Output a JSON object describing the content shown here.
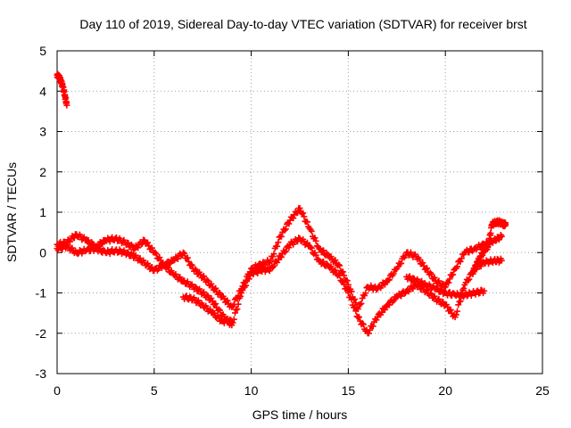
{
  "chart_data": {
    "type": "scatter",
    "title": "Day 110 of 2019, Sidereal Day-to-day VTEC variation (SDTVAR) for receiver brst",
    "xlabel": "GPS time / hours",
    "ylabel": "SDTVAR / TECUs",
    "xlim": [
      0,
      25
    ],
    "ylim": [
      -3,
      5
    ],
    "xticks": [
      0,
      5,
      10,
      15,
      20,
      25
    ],
    "yticks": [
      -3,
      -2,
      -1,
      0,
      1,
      2,
      3,
      4,
      5
    ],
    "grid": true,
    "marker": "plus",
    "color": "#ff0000",
    "series": [
      {
        "name": "early-segment",
        "x": [
          0.0,
          0.1,
          0.2,
          0.3,
          0.4,
          0.5
        ],
        "y": [
          4.4,
          4.35,
          4.25,
          4.1,
          3.9,
          3.65
        ]
      },
      {
        "name": "track-a",
        "x": [
          0.0,
          0.5,
          1.0,
          1.5,
          2.0,
          2.5,
          3.0,
          3.5,
          4.0,
          4.5,
          5.0,
          5.5,
          6.0,
          6.5,
          7.0,
          7.5,
          8.0,
          8.5,
          9.0,
          9.5,
          10.0,
          10.5,
          11.0,
          11.5,
          12.0,
          12.5,
          13.0,
          13.5,
          14.0,
          14.5,
          15.0,
          15.5,
          16.0,
          16.5,
          17.0,
          17.5,
          18.0,
          18.5,
          19.0,
          19.5,
          20.0,
          20.5,
          21.0,
          21.5,
          22.0,
          22.5,
          22.9
        ],
        "y": [
          0.2,
          0.25,
          0.45,
          0.3,
          0.15,
          0.3,
          0.35,
          0.25,
          0.1,
          0.3,
          0.0,
          -0.3,
          -0.2,
          0.0,
          -0.4,
          -0.6,
          -0.85,
          -1.1,
          -1.35,
          -0.9,
          -0.4,
          -0.3,
          -0.2,
          0.4,
          0.8,
          1.1,
          0.6,
          0.1,
          -0.1,
          -0.3,
          -0.8,
          -1.4,
          -0.85,
          -0.9,
          -0.7,
          -0.4,
          0.0,
          -0.1,
          -0.4,
          -0.7,
          -0.85,
          -0.4,
          0.0,
          0.1,
          0.2,
          0.3,
          0.4
        ]
      },
      {
        "name": "track-b",
        "x": [
          0.0,
          0.5,
          1.0,
          1.5,
          2.0,
          2.5,
          3.0,
          3.5,
          4.0,
          4.5,
          5.0,
          5.5,
          6.0,
          6.5,
          7.0,
          7.5,
          8.0,
          8.5,
          9.0,
          9.5,
          10.0,
          10.5,
          11.0,
          11.5,
          12.0,
          12.5,
          13.0,
          13.5,
          14.0,
          14.5,
          15.0,
          15.5,
          16.0,
          16.5,
          17.0,
          17.5,
          18.0,
          18.5,
          19.0,
          19.5,
          20.0,
          20.5,
          21.0,
          21.5,
          22.0,
          22.5,
          22.9
        ],
        "y": [
          0.1,
          0.15,
          0.0,
          0.05,
          0.1,
          0.0,
          0.05,
          0.0,
          -0.1,
          -0.25,
          -0.45,
          -0.3,
          -0.55,
          -0.7,
          -0.85,
          -1.0,
          -1.2,
          -1.55,
          -1.8,
          -1.0,
          -0.5,
          -0.45,
          -0.4,
          -0.1,
          0.2,
          0.35,
          0.15,
          -0.2,
          -0.35,
          -0.55,
          -1.0,
          -1.6,
          -2.0,
          -1.6,
          -1.3,
          -1.1,
          -0.95,
          -0.8,
          -0.95,
          -1.15,
          -1.3,
          -1.6,
          -0.8,
          -0.4,
          -0.25,
          -0.2,
          -0.2
        ]
      },
      {
        "name": "track-c",
        "x": [
          6.5,
          7.0,
          7.5,
          8.0,
          8.5,
          9.0
        ],
        "y": [
          -1.1,
          -1.15,
          -1.3,
          -1.5,
          -1.7,
          -1.7
        ]
      },
      {
        "name": "track-d",
        "x": [
          18.0,
          18.5,
          19.0,
          19.5,
          20.0,
          20.5,
          21.0,
          21.5,
          22.0
        ],
        "y": [
          -0.6,
          -0.7,
          -0.8,
          -0.9,
          -1.0,
          -1.05,
          -1.05,
          -1.0,
          -0.95
        ]
      },
      {
        "name": "late-segment",
        "x": [
          21.4,
          21.6,
          21.8,
          22.0,
          22.2,
          22.4,
          22.6,
          22.8,
          23.0,
          23.1
        ],
        "y": [
          -0.5,
          -0.3,
          -0.1,
          0.05,
          0.15,
          0.7,
          0.75,
          0.75,
          0.7,
          0.7
        ]
      }
    ]
  }
}
